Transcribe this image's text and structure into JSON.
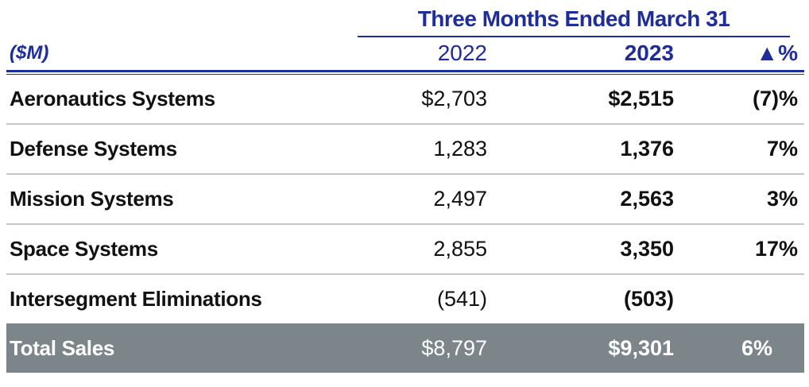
{
  "table": {
    "title": "Three Months Ended March 31",
    "unit_label": "($M)",
    "columns": {
      "y2022": "2022",
      "y2023": "2023",
      "change": "▲%"
    },
    "rows": [
      {
        "label": "Aeronautics Systems",
        "y2022": "$2,703",
        "y2023": "$2,515",
        "pct": "(7)%"
      },
      {
        "label": "Defense Systems",
        "y2022": "1,283",
        "y2023": "1,376",
        "pct": "7%"
      },
      {
        "label": "Mission Systems",
        "y2022": "2,497",
        "y2023": "2,563",
        "pct": "3%"
      },
      {
        "label": "Space Systems",
        "y2022": "2,855",
        "y2023": "3,350",
        "pct": "17%"
      },
      {
        "label": "Intersegment Eliminations",
        "y2022": "(541)",
        "y2023": "(503)",
        "pct": ""
      }
    ],
    "total": {
      "label": "Total Sales",
      "y2022": "$8,797",
      "y2023": "$9,301",
      "pct": "6%"
    },
    "colors": {
      "accent_blue": "#1e2d9b",
      "total_row_background": "#7b858a",
      "row_separator": "#c6c6c6"
    }
  },
  "chart_data": {
    "type": "table",
    "title": "Three Months Ended March 31",
    "unit": "$M",
    "categories": [
      "Aeronautics Systems",
      "Defense Systems",
      "Mission Systems",
      "Space Systems",
      "Intersegment Eliminations",
      "Total Sales"
    ],
    "series": [
      {
        "name": "2022",
        "values": [
          2703,
          1283,
          2497,
          2855,
          -541,
          8797
        ]
      },
      {
        "name": "2023",
        "values": [
          2515,
          1376,
          2563,
          3350,
          -503,
          9301
        ]
      },
      {
        "name": "change_pct",
        "values": [
          -7,
          7,
          3,
          17,
          null,
          6
        ]
      }
    ]
  }
}
